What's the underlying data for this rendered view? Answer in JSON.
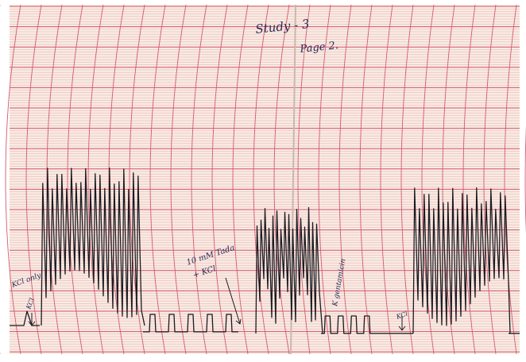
{
  "header": {
    "title": "Study - 3",
    "page": "Page 2."
  },
  "annotations": [
    {
      "label": "KCl only"
    },
    {
      "label": "KCl"
    },
    {
      "label": "10 mM Tada"
    },
    {
      "label": "+ KCl"
    },
    {
      "label": "K gentamicin"
    },
    {
      "label": "KCl"
    }
  ]
}
